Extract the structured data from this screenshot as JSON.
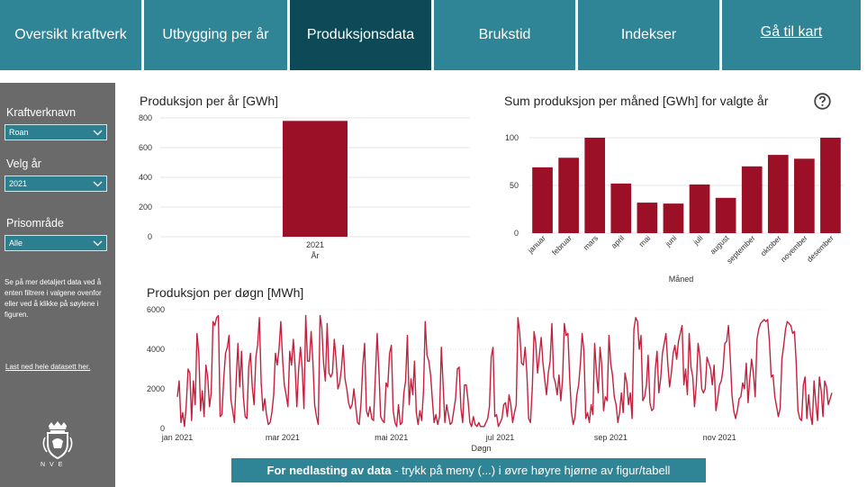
{
  "nav": {
    "tabs": [
      {
        "label": "Oversikt kraftverk"
      },
      {
        "label": "Utbygging per år"
      },
      {
        "label": "Produksjonsdata"
      },
      {
        "label": "Brukstid"
      },
      {
        "label": "Indekser"
      },
      {
        "label": "Gå til kart"
      }
    ],
    "active_tab": "Produksjonsdata"
  },
  "sidebar": {
    "plant_label": "Kraftverknavn",
    "plant_value": "Roan",
    "year_label": "Velg år",
    "year_value": "2021",
    "price_area_label": "Prisområde",
    "price_area_value": "Alle",
    "note": "Se på mer detaljert data ved å enten filtrere i valgene ovenfor eller ved å klikke på søylene i figuren.",
    "download_link": "Last ned hele datasett her.",
    "logo_text": "NVE"
  },
  "colors": {
    "accent": "#2f8596",
    "accent_dark": "#0c4a58",
    "bar": "#9b1027",
    "line": "#c4213f",
    "sidebar": "#6a6a6a"
  },
  "icons": {
    "help": "question-circle-icon",
    "dropdown": "chevron-down-icon",
    "logo": "nve-crest-icon"
  },
  "banner": {
    "bold": "For nedlasting av data",
    "rest": " - trykk på meny (...) i øvre høyre hjørne av figur/tabell"
  },
  "chart_data": [
    {
      "type": "bar",
      "title": "Produksjon per år [GWh]",
      "categories": [
        "2021"
      ],
      "values": [
        780
      ],
      "xlabel": "År",
      "ylabel": "",
      "ylim": [
        0,
        800
      ],
      "yticks": [
        0,
        200,
        400,
        600,
        800
      ],
      "grid": true
    },
    {
      "type": "bar",
      "title": "Sum produksjon per måned [GWh] for valgte år",
      "categories": [
        "januar",
        "februar",
        "mars",
        "april",
        "mai",
        "juni",
        "juli",
        "august",
        "september",
        "oktober",
        "november",
        "desember"
      ],
      "values": [
        69,
        79,
        100,
        52,
        32,
        31,
        51,
        37,
        70,
        82,
        78,
        100
      ],
      "xlabel": "Måned",
      "ylabel": "",
      "ylim": [
        0,
        100
      ],
      "yticks": [
        0,
        50,
        100
      ],
      "grid": true
    },
    {
      "type": "line",
      "title": "Produksjon per døgn [MWh]",
      "xlabel": "Døgn",
      "ylabel": "",
      "ylim": [
        0,
        6000
      ],
      "yticks": [
        0,
        2000,
        4000,
        6000
      ],
      "xtick_labels": [
        "jan 2021",
        "mar 2021",
        "mai 2021",
        "jul 2021",
        "sep 2021",
        "nov 2021"
      ],
      "xtick_days": [
        0,
        59,
        120,
        181,
        243,
        304
      ],
      "x_domain_days": [
        0,
        365
      ],
      "grid": true,
      "series": [
        {
          "values": [
            1600,
            2400,
            300,
            800,
            100,
            1200,
            3000,
            2800,
            400,
            2400,
            1200,
            4800,
            3800,
            900,
            1900,
            600,
            3200,
            2600,
            1100,
            1800,
            5400,
            5200,
            5600,
            5700,
            600,
            700,
            2500,
            3800,
            4100,
            4700,
            1500,
            900,
            300,
            2500,
            4300,
            2100,
            3900,
            1600,
            600,
            500,
            3100,
            3800,
            2100,
            1200,
            3600,
            4200,
            5600,
            2300,
            900,
            1500,
            700,
            200,
            300,
            800,
            1700,
            3800,
            3200,
            4000,
            5400,
            3500,
            2200,
            1700,
            1100,
            3900,
            3200,
            4500,
            3200,
            1100,
            3000,
            4100,
            3000,
            1000,
            5700,
            3400,
            3400,
            4900,
            3400,
            1200,
            600,
            200,
            5700,
            5100,
            3300,
            2400,
            5300,
            2800,
            2600,
            2800,
            4500,
            3500,
            2000,
            2300,
            3000,
            4200,
            2500,
            2000,
            1300,
            1000,
            1200,
            2000,
            1100,
            300,
            200,
            1300,
            3200,
            4300,
            900,
            600,
            1100,
            500,
            400,
            2600,
            4800,
            3000,
            600,
            400,
            300,
            2300,
            2100,
            3800,
            4200,
            900,
            300,
            100,
            1200,
            200,
            300,
            1800,
            2400,
            4700,
            1200,
            2500,
            1700,
            3400,
            800,
            200,
            900,
            400,
            1900,
            5400,
            3700,
            3400,
            2700,
            1400,
            300,
            700,
            200,
            600,
            4100,
            2300,
            300,
            1200,
            700,
            200,
            300,
            900,
            1500,
            3000,
            3100,
            1000,
            300,
            2200,
            2200,
            1400,
            300,
            100,
            600,
            200,
            100,
            300,
            100,
            100,
            100,
            300,
            500,
            1100,
            3600,
            4100,
            600,
            700,
            100,
            300,
            500,
            1200,
            1300,
            600,
            1700,
            1200,
            300,
            800,
            1200,
            5600,
            4800,
            3300,
            3200,
            4100,
            2800,
            500,
            300,
            2000,
            4900,
            4300,
            2800,
            3700,
            4600,
            3300,
            2500,
            1700,
            2800,
            3400,
            5300,
            2600,
            2300,
            1700,
            2700,
            1400,
            2500,
            5300,
            4700,
            4800,
            2500,
            800,
            200,
            600,
            1700,
            2200,
            3300,
            4800,
            3900,
            500,
            800,
            300,
            1200,
            700,
            4300,
            2800,
            1800,
            4100,
            3200,
            900,
            1600,
            1400,
            4700,
            3300,
            2700,
            1600,
            1200,
            300,
            800,
            1800,
            800,
            2800,
            2300,
            1200,
            1800,
            500,
            5000,
            5600,
            5400,
            4000,
            4700,
            1400,
            1600,
            2200,
            3700,
            1300,
            900,
            1000,
            3000,
            3900,
            1800,
            2500,
            3800,
            4300,
            4800,
            3300,
            2100,
            2800,
            3800,
            4200,
            3500,
            4400,
            4800,
            5200,
            2200,
            3000,
            1700,
            4800,
            3100,
            2600,
            1100,
            2200,
            4300,
            3600,
            2000,
            1800,
            2000,
            3600,
            3300,
            3000,
            2200,
            3200,
            900,
            1500,
            2200,
            2400,
            3000,
            4300,
            4400,
            5200,
            3600,
            1700,
            900,
            500,
            900,
            1500,
            1600,
            2300,
            2000,
            3300,
            1300,
            2500,
            3500,
            2800,
            1600,
            4500,
            5000,
            5300,
            5400,
            5500,
            5400,
            5500,
            4400,
            2600,
            2700,
            1600,
            1100,
            600,
            1000,
            3500,
            4200,
            5000,
            5400,
            5300,
            5200,
            4800,
            4900,
            3400,
            900,
            500,
            400,
            2200,
            2600,
            500,
            1700,
            700,
            200,
            2400,
            1300,
            400,
            2600,
            1900,
            600,
            2400,
            2100,
            1200,
            1500,
            1800
          ]
        }
      ]
    }
  ]
}
